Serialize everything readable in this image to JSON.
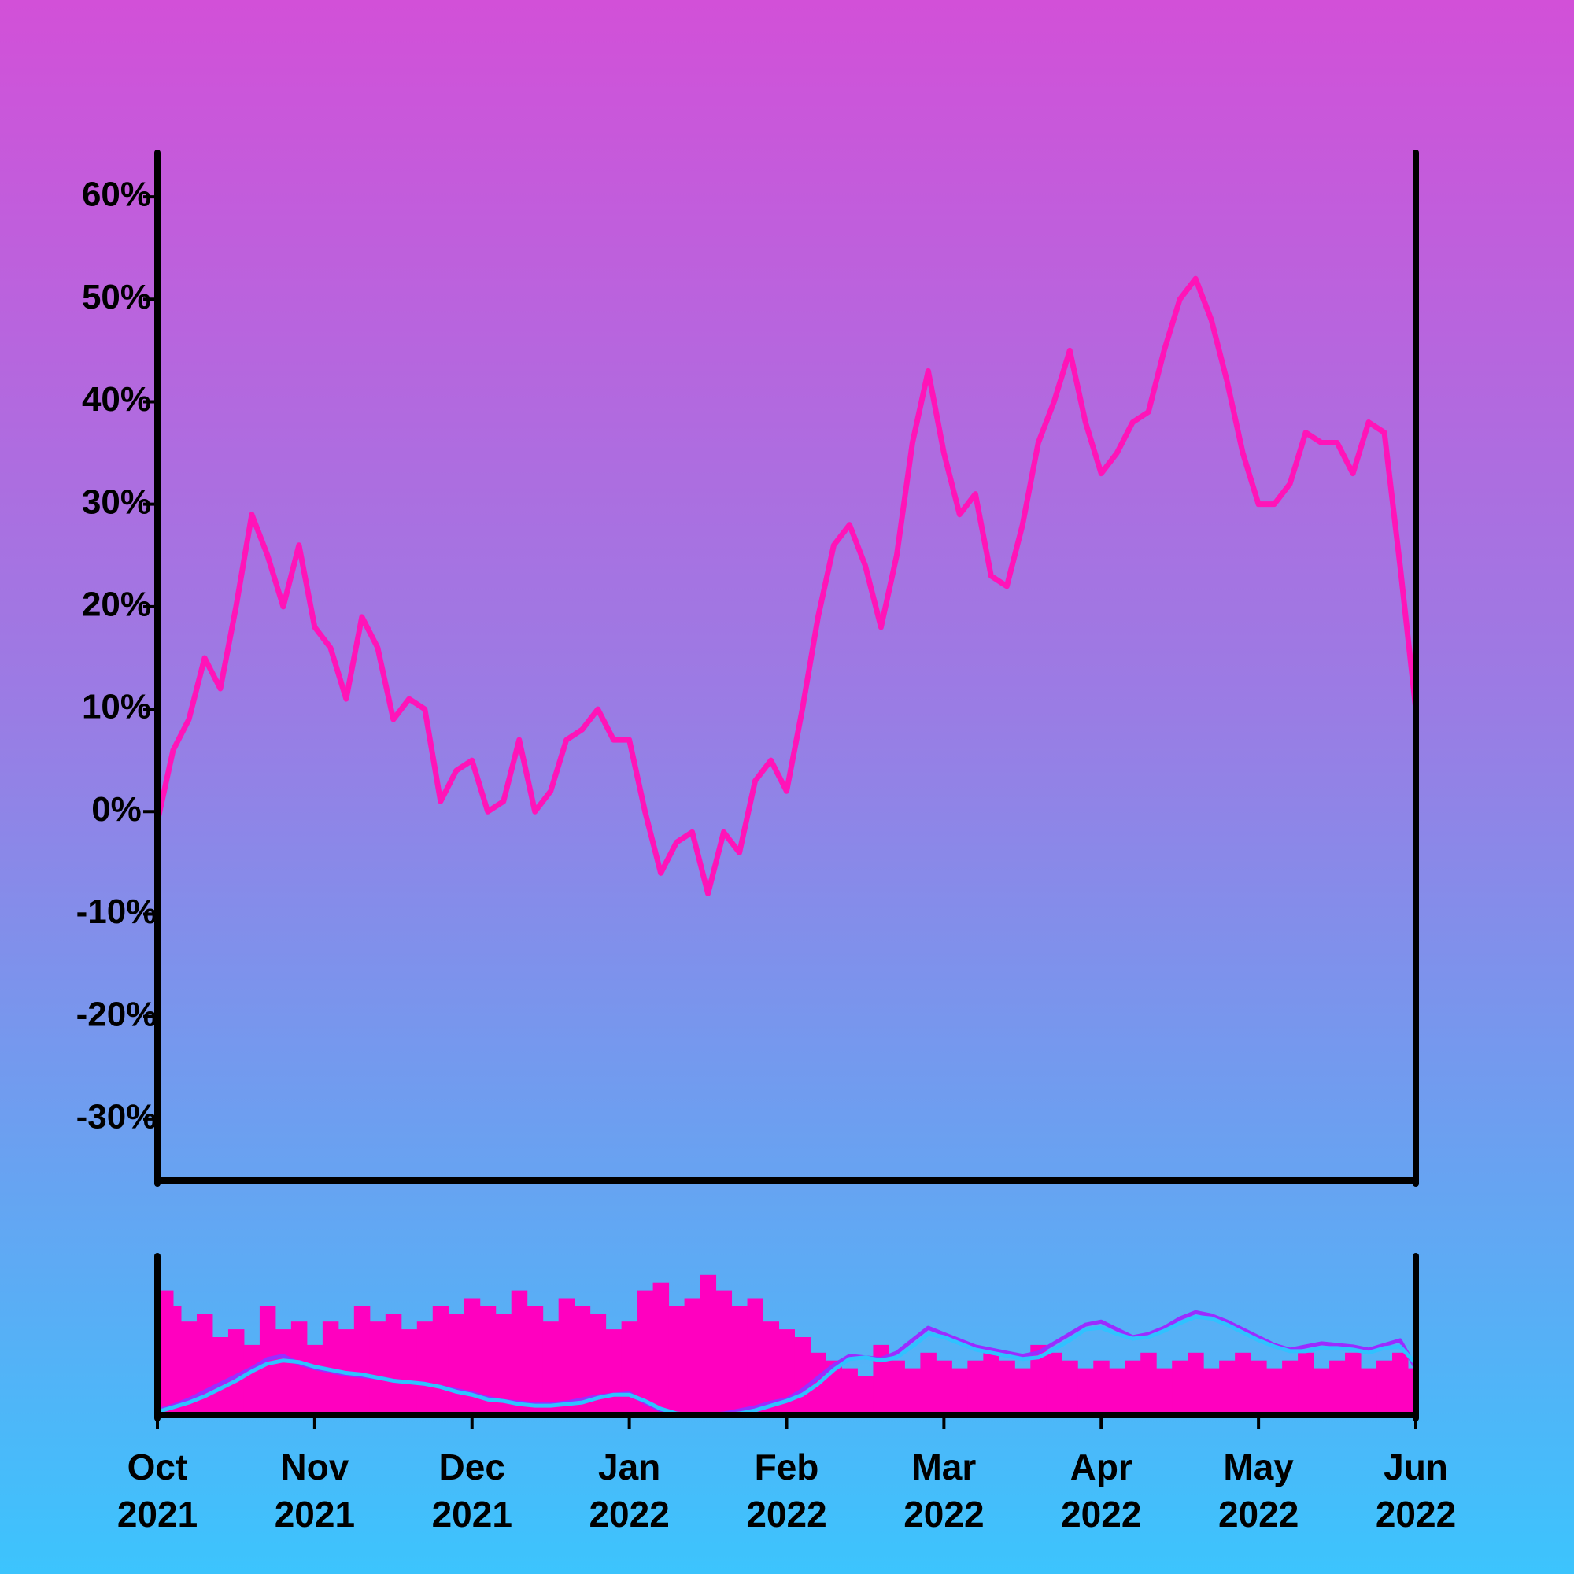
{
  "chart_data": [
    {
      "type": "line",
      "color": "#ff14b8",
      "xlim": [
        0,
        8
      ],
      "ylim": [
        -36,
        64
      ],
      "yticks": [
        {
          "value": -30,
          "label": "-30%"
        },
        {
          "value": -20,
          "label": "-20%"
        },
        {
          "value": -10,
          "label": "-10%"
        },
        {
          "value": 0,
          "label": "0%"
        },
        {
          "value": 10,
          "label": "10%"
        },
        {
          "value": 20,
          "label": "20%"
        },
        {
          "value": 30,
          "label": "30%"
        },
        {
          "value": 40,
          "label": "40%"
        },
        {
          "value": 50,
          "label": "50%"
        },
        {
          "value": 60,
          "label": "60%"
        }
      ],
      "x": [
        0,
        0.1,
        0.2,
        0.3,
        0.4,
        0.5,
        0.6,
        0.7,
        0.8,
        0.9,
        1,
        1.1,
        1.2,
        1.3,
        1.4,
        1.5,
        1.6,
        1.7,
        1.8,
        1.9,
        2,
        2.1,
        2.2,
        2.3,
        2.4,
        2.5,
        2.6,
        2.7,
        2.8,
        2.9,
        3,
        3.1,
        3.2,
        3.3,
        3.4,
        3.5,
        3.6,
        3.7,
        3.8,
        3.9,
        4,
        4.1,
        4.2,
        4.3,
        4.4,
        4.5,
        4.6,
        4.7,
        4.8,
        4.9,
        5,
        5.1,
        5.2,
        5.3,
        5.4,
        5.5,
        5.6,
        5.7,
        5.8,
        5.9,
        6,
        6.1,
        6.2,
        6.3,
        6.4,
        6.5,
        6.6,
        6.7,
        6.8,
        6.9,
        7,
        7.1,
        7.2,
        7.3,
        7.4,
        7.5,
        7.6,
        7.7,
        7.8,
        7.9,
        8
      ],
      "values": [
        -1,
        6,
        9,
        15,
        12,
        20,
        29,
        25,
        20,
        26,
        18,
        16,
        11,
        19,
        16,
        9,
        11,
        10,
        1,
        4,
        5,
        0,
        1,
        7,
        0,
        2,
        7,
        8,
        10,
        7,
        7,
        0,
        -6,
        -3,
        -2,
        -8,
        -2,
        -4,
        3,
        5,
        2,
        10,
        19,
        26,
        28,
        24,
        18,
        25,
        36,
        43,
        35,
        29,
        31,
        23,
        22,
        28,
        36,
        40,
        45,
        38,
        33,
        35,
        38,
        39,
        45,
        50,
        52,
        48,
        42,
        35,
        30,
        30,
        32,
        37,
        36,
        36,
        33,
        38,
        37,
        24,
        10
      ]
    },
    {
      "type": "bar",
      "xlim": [
        0,
        8
      ],
      "ylim": [
        0,
        100
      ],
      "xticks": [
        {
          "value": 0,
          "label": "Oct\n2021"
        },
        {
          "value": 1,
          "label": "Nov\n2021"
        },
        {
          "value": 2,
          "label": "Dec\n2021"
        },
        {
          "value": 3,
          "label": "Jan\n2022"
        },
        {
          "value": 4,
          "label": "Feb\n2022"
        },
        {
          "value": 5,
          "label": "Mar\n2022"
        },
        {
          "value": 6,
          "label": "Apr\n2022"
        },
        {
          "value": 7,
          "label": "May\n2022"
        },
        {
          "value": 8,
          "label": "Jun\n2022"
        }
      ],
      "x": [
        0,
        0.1,
        0.2,
        0.3,
        0.4,
        0.5,
        0.6,
        0.7,
        0.8,
        0.9,
        1,
        1.1,
        1.2,
        1.3,
        1.4,
        1.5,
        1.6,
        1.7,
        1.8,
        1.9,
        2,
        2.1,
        2.2,
        2.3,
        2.4,
        2.5,
        2.6,
        2.7,
        2.8,
        2.9,
        3,
        3.1,
        3.2,
        3.3,
        3.4,
        3.5,
        3.6,
        3.7,
        3.8,
        3.9,
        4,
        4.1,
        4.2,
        4.3,
        4.4,
        4.5,
        4.6,
        4.7,
        4.8,
        4.9,
        5,
        5.1,
        5.2,
        5.3,
        5.4,
        5.5,
        5.6,
        5.7,
        5.8,
        5.9,
        6,
        6.1,
        6.2,
        6.3,
        6.4,
        6.5,
        6.6,
        6.7,
        6.8,
        6.9,
        7,
        7.1,
        7.2,
        7.3,
        7.4,
        7.5,
        7.6,
        7.7,
        7.8,
        7.9,
        8
      ],
      "series": [
        {
          "type": "bar",
          "color": "#ff00bf",
          "values": [
            80,
            70,
            60,
            65,
            50,
            55,
            45,
            70,
            55,
            60,
            45,
            60,
            55,
            70,
            60,
            65,
            55,
            60,
            70,
            65,
            75,
            70,
            65,
            80,
            70,
            60,
            75,
            70,
            65,
            55,
            60,
            80,
            85,
            70,
            75,
            90,
            80,
            70,
            75,
            60,
            55,
            50,
            40,
            35,
            30,
            25,
            45,
            35,
            30,
            40,
            35,
            30,
            35,
            40,
            35,
            30,
            45,
            40,
            35,
            30,
            35,
            30,
            35,
            40,
            30,
            35,
            40,
            30,
            35,
            40,
            35,
            30,
            35,
            40,
            30,
            35,
            40,
            30,
            35,
            40,
            30
          ]
        },
        {
          "type": "line",
          "color": "#9b2cff",
          "values": [
            3,
            6,
            10,
            15,
            20,
            25,
            30,
            36,
            38,
            33,
            30,
            28,
            26,
            25,
            24,
            22,
            21,
            20,
            18,
            16,
            14,
            11,
            9,
            8,
            7,
            7,
            8,
            10,
            12,
            13,
            14,
            8,
            3,
            1,
            0,
            0,
            1,
            3,
            5,
            8,
            10,
            16,
            24,
            32,
            38,
            37,
            36,
            40,
            48,
            56,
            52,
            48,
            44,
            42,
            40,
            38,
            40,
            46,
            52,
            58,
            60,
            55,
            50,
            52,
            56,
            62,
            66,
            64,
            60,
            55,
            50,
            45,
            42,
            44,
            46,
            45,
            44,
            42,
            45,
            48,
            30
          ]
        },
        {
          "type": "line",
          "color": "#2fc2ff",
          "values": [
            2,
            5,
            8,
            12,
            17,
            22,
            28,
            33,
            35,
            34,
            31,
            29,
            27,
            26,
            24,
            22,
            21,
            20,
            18,
            15,
            13,
            10,
            9,
            7,
            6,
            6,
            7,
            8,
            11,
            13,
            13,
            9,
            4,
            1,
            0,
            0,
            0,
            1,
            3,
            6,
            9,
            13,
            20,
            29,
            36,
            37,
            35,
            37,
            44,
            52,
            50,
            46,
            42,
            40,
            38,
            36,
            37,
            42,
            48,
            55,
            56,
            52,
            49,
            50,
            54,
            59,
            63,
            62,
            58,
            53,
            48,
            44,
            41,
            41,
            43,
            43,
            42,
            40,
            43,
            44,
            33
          ]
        }
      ]
    }
  ]
}
